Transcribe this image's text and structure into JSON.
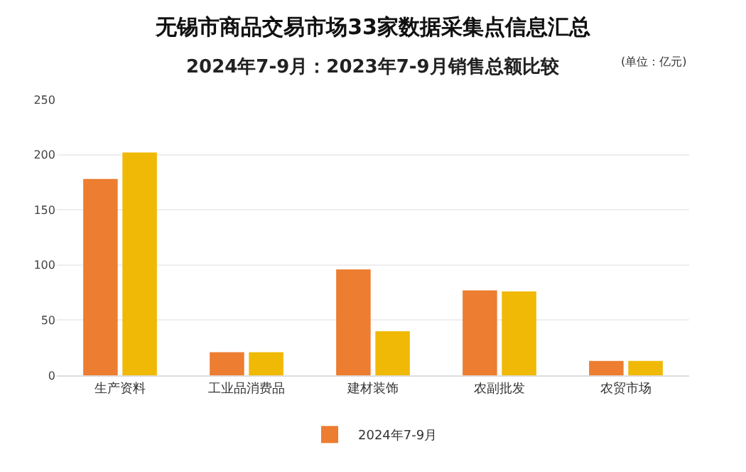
{
  "chart_data": {
    "type": "bar",
    "title": "无锡市商品交易市场33家数据采集点信息汇总",
    "subtitle": "2024年7-9月：2023年7-9月销售总额比较",
    "annotations": [
      "(单位：亿元)"
    ],
    "categories": [
      "生产资料",
      "工业品消费品",
      "建材装饰",
      "农副批发",
      "农贸市场"
    ],
    "series": [
      {
        "name": "2024年7-9月",
        "color": "#ed7d31",
        "values": [
          178,
          21,
          96,
          77,
          13
        ]
      },
      {
        "color": "#f0b905",
        "values": [
          202,
          21,
          40,
          76,
          13
        ]
      }
    ],
    "ylim": [
      0,
      250
    ],
    "yticks": [
      0,
      50,
      100,
      150,
      200,
      250
    ],
    "grid": "y",
    "legend": "bottom"
  }
}
